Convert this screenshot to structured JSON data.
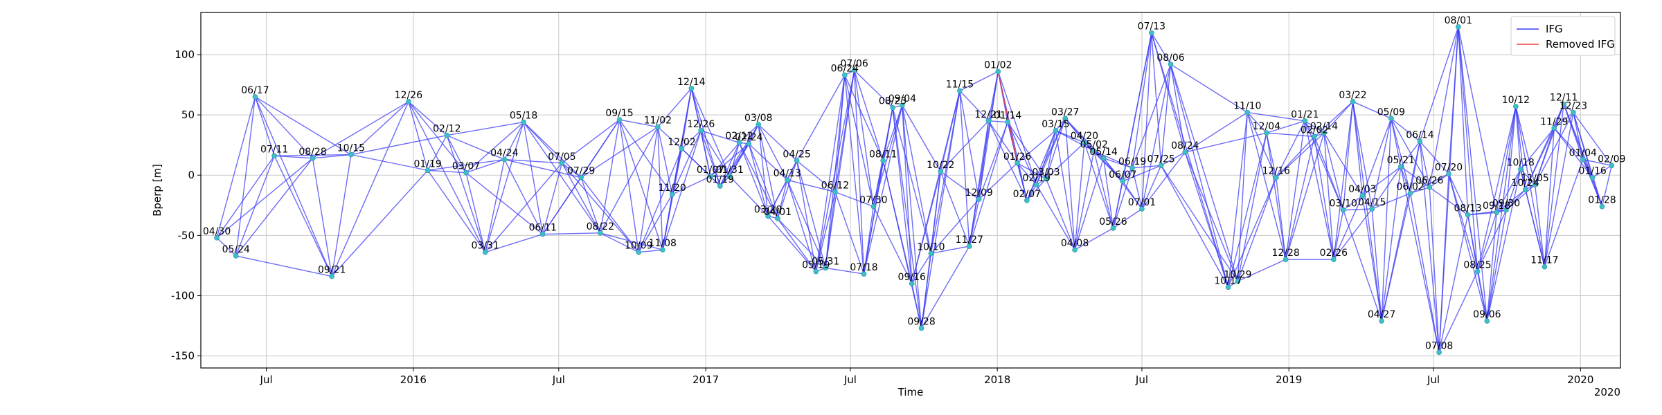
{
  "chart_data": {
    "type": "network",
    "title": "",
    "xlabel": "Time",
    "ylabel": "Bperp [m]",
    "x_range": [
      "2015-04-10",
      "2020-02-20"
    ],
    "ylim": [
      -160,
      135
    ],
    "x_ticks": [
      {
        "date": "2015-07-01",
        "label": "Jul"
      },
      {
        "date": "2016-01-01",
        "label": "2016"
      },
      {
        "date": "2016-07-01",
        "label": "Jul"
      },
      {
        "date": "2017-01-01",
        "label": "2017"
      },
      {
        "date": "2017-07-01",
        "label": "Jul"
      },
      {
        "date": "2018-01-01",
        "label": "2018"
      },
      {
        "date": "2018-07-01",
        "label": "Jul"
      },
      {
        "date": "2019-01-01",
        "label": "2019"
      },
      {
        "date": "2019-07-01",
        "label": "Jul"
      },
      {
        "date": "2020-01-01",
        "label": "2020"
      }
    ],
    "x_offset_label": "2020",
    "y_ticks": [
      -150,
      -100,
      -50,
      0,
      50,
      100
    ],
    "grid": true,
    "legend_position": "top-right",
    "series": [
      {
        "name": "IFG",
        "color": "#3b3bf5"
      },
      {
        "name": "Removed IFG",
        "color": "#f04040"
      }
    ],
    "acquisitions": [
      {
        "label": "04/30",
        "date": "2015-04-30",
        "bperp": -52
      },
      {
        "label": "05/24",
        "date": "2015-05-24",
        "bperp": -67
      },
      {
        "label": "06/17",
        "date": "2015-06-17",
        "bperp": 65
      },
      {
        "label": "07/11",
        "date": "2015-07-11",
        "bperp": 16
      },
      {
        "label": "08/28",
        "date": "2015-08-28",
        "bperp": 14
      },
      {
        "label": "09/21",
        "date": "2015-09-21",
        "bperp": -84
      },
      {
        "label": "10/15",
        "date": "2015-10-15",
        "bperp": 17
      },
      {
        "label": "12/26",
        "date": "2015-12-26",
        "bperp": 61
      },
      {
        "label": "01/19",
        "date": "2016-01-19",
        "bperp": 4
      },
      {
        "label": "02/12",
        "date": "2016-02-12",
        "bperp": 33
      },
      {
        "label": "03/07",
        "date": "2016-03-07",
        "bperp": 2
      },
      {
        "label": "03/31",
        "date": "2016-03-31",
        "bperp": -64
      },
      {
        "label": "04/24",
        "date": "2016-04-24",
        "bperp": 13
      },
      {
        "label": "05/18",
        "date": "2016-05-18",
        "bperp": 44
      },
      {
        "label": "06/11",
        "date": "2016-06-11",
        "bperp": -49
      },
      {
        "label": "07/05",
        "date": "2016-07-05",
        "bperp": 10
      },
      {
        "label": "07/29",
        "date": "2016-07-29",
        "bperp": -2
      },
      {
        "label": "08/22",
        "date": "2016-08-22",
        "bperp": -48
      },
      {
        "label": "09/15",
        "date": "2016-09-15",
        "bperp": 46
      },
      {
        "label": "10/09",
        "date": "2016-10-09",
        "bperp": -64
      },
      {
        "label": "11/02",
        "date": "2016-11-02",
        "bperp": 40
      },
      {
        "label": "11/08",
        "date": "2016-11-08",
        "bperp": -62
      },
      {
        "label": "11/20",
        "date": "2016-11-20",
        "bperp": -16
      },
      {
        "label": "12/02",
        "date": "2016-12-02",
        "bperp": 22
      },
      {
        "label": "12/14",
        "date": "2016-12-14",
        "bperp": 72
      },
      {
        "label": "12/26",
        "date": "2016-12-26",
        "bperp": 37
      },
      {
        "label": "01/07",
        "date": "2017-01-07",
        "bperp": -1
      },
      {
        "label": "01/19",
        "date": "2017-01-19",
        "bperp": -9
      },
      {
        "label": "01/31",
        "date": "2017-01-31",
        "bperp": -1
      },
      {
        "label": "02/12",
        "date": "2017-02-12",
        "bperp": 27
      },
      {
        "label": "02/24",
        "date": "2017-02-24",
        "bperp": 26
      },
      {
        "label": "03/08",
        "date": "2017-03-08",
        "bperp": 42
      },
      {
        "label": "03/20",
        "date": "2017-03-20",
        "bperp": -34
      },
      {
        "label": "04/01",
        "date": "2017-04-01",
        "bperp": -36
      },
      {
        "label": "04/13",
        "date": "2017-04-13",
        "bperp": -4
      },
      {
        "label": "04/25",
        "date": "2017-04-25",
        "bperp": 12
      },
      {
        "label": "05/31",
        "date": "2017-05-31",
        "bperp": -77
      },
      {
        "label": "05/19",
        "date": "2017-05-19",
        "bperp": -80
      },
      {
        "label": "06/12",
        "date": "2017-06-12",
        "bperp": -14
      },
      {
        "label": "06/24",
        "date": "2017-06-24",
        "bperp": 83
      },
      {
        "label": "07/06",
        "date": "2017-07-06",
        "bperp": 87
      },
      {
        "label": "07/18",
        "date": "2017-07-18",
        "bperp": -82
      },
      {
        "label": "07/30",
        "date": "2017-07-30",
        "bperp": -26
      },
      {
        "label": "08/11",
        "date": "2017-08-11",
        "bperp": 12
      },
      {
        "label": "08/23",
        "date": "2017-08-23",
        "bperp": 56
      },
      {
        "label": "09/04",
        "date": "2017-09-04",
        "bperp": 58
      },
      {
        "label": "09/16",
        "date": "2017-09-16",
        "bperp": -90
      },
      {
        "label": "09/28",
        "date": "2017-09-28",
        "bperp": -127
      },
      {
        "label": "10/10",
        "date": "2017-10-10",
        "bperp": -65
      },
      {
        "label": "10/22",
        "date": "2017-10-22",
        "bperp": 3
      },
      {
        "label": "11/15",
        "date": "2017-11-15",
        "bperp": 70
      },
      {
        "label": "11/27",
        "date": "2017-11-27",
        "bperp": -59
      },
      {
        "label": "12/09",
        "date": "2017-12-09",
        "bperp": -20
      },
      {
        "label": "12/21",
        "date": "2017-12-21",
        "bperp": 45
      },
      {
        "label": "01/02",
        "date": "2018-01-02",
        "bperp": 86
      },
      {
        "label": "01/14",
        "date": "2018-01-14",
        "bperp": 44
      },
      {
        "label": "01/26",
        "date": "2018-01-26",
        "bperp": 10
      },
      {
        "label": "02/07",
        "date": "2018-02-07",
        "bperp": -21
      },
      {
        "label": "02/19",
        "date": "2018-02-19",
        "bperp": -8
      },
      {
        "label": "03/03",
        "date": "2018-03-03",
        "bperp": -3
      },
      {
        "label": "03/15",
        "date": "2018-03-15",
        "bperp": 37
      },
      {
        "label": "03/27",
        "date": "2018-03-27",
        "bperp": 47
      },
      {
        "label": "04/08",
        "date": "2018-04-08",
        "bperp": -62
      },
      {
        "label": "04/20",
        "date": "2018-04-20",
        "bperp": 27
      },
      {
        "label": "05/02",
        "date": "2018-05-02",
        "bperp": 20
      },
      {
        "label": "05/14",
        "date": "2018-05-14",
        "bperp": 14
      },
      {
        "label": "05/26",
        "date": "2018-05-26",
        "bperp": -44
      },
      {
        "label": "06/07",
        "date": "2018-06-07",
        "bperp": -5
      },
      {
        "label": "06/19",
        "date": "2018-06-19",
        "bperp": 6
      },
      {
        "label": "07/01",
        "date": "2018-07-01",
        "bperp": -28
      },
      {
        "label": "07/13",
        "date": "2018-07-13",
        "bperp": 118
      },
      {
        "label": "07/25",
        "date": "2018-07-25",
        "bperp": 8
      },
      {
        "label": "08/06",
        "date": "2018-08-06",
        "bperp": 92
      },
      {
        "label": "08/24",
        "date": "2018-08-24",
        "bperp": 19
      },
      {
        "label": "10/17",
        "date": "2018-10-17",
        "bperp": -93
      },
      {
        "label": "10/29",
        "date": "2018-10-29",
        "bperp": -88
      },
      {
        "label": "11/10",
        "date": "2018-11-10",
        "bperp": 52
      },
      {
        "label": "12/04",
        "date": "2018-12-04",
        "bperp": 35
      },
      {
        "label": "12/16",
        "date": "2018-12-16",
        "bperp": -2
      },
      {
        "label": "12/28",
        "date": "2018-12-28",
        "bperp": -70
      },
      {
        "label": "01/21",
        "date": "2019-01-21",
        "bperp": 45
      },
      {
        "label": "02/02",
        "date": "2019-02-02",
        "bperp": 32
      },
      {
        "label": "02/14",
        "date": "2019-02-14",
        "bperp": 35
      },
      {
        "label": "02/26",
        "date": "2019-02-26",
        "bperp": -70
      },
      {
        "label": "03/10",
        "date": "2019-03-10",
        "bperp": -29
      },
      {
        "label": "03/22",
        "date": "2019-03-22",
        "bperp": 61
      },
      {
        "label": "04/03",
        "date": "2019-04-03",
        "bperp": -17
      },
      {
        "label": "04/15",
        "date": "2019-04-15",
        "bperp": -28
      },
      {
        "label": "04/27",
        "date": "2019-04-27",
        "bperp": -121
      },
      {
        "label": "05/09",
        "date": "2019-05-09",
        "bperp": 47
      },
      {
        "label": "05/21",
        "date": "2019-05-21",
        "bperp": 7
      },
      {
        "label": "06/02",
        "date": "2019-06-02",
        "bperp": -15
      },
      {
        "label": "06/14",
        "date": "2019-06-14",
        "bperp": 28
      },
      {
        "label": "06/26",
        "date": "2019-06-26",
        "bperp": -10
      },
      {
        "label": "07/08",
        "date": "2019-07-08",
        "bperp": -147
      },
      {
        "label": "07/20",
        "date": "2019-07-20",
        "bperp": 1
      },
      {
        "label": "08/01",
        "date": "2019-08-01",
        "bperp": 123
      },
      {
        "label": "08/13",
        "date": "2019-08-13",
        "bperp": -33
      },
      {
        "label": "08/25",
        "date": "2019-08-25",
        "bperp": -80
      },
      {
        "label": "09/06",
        "date": "2019-09-06",
        "bperp": -121
      },
      {
        "label": "09/18",
        "date": "2019-09-18",
        "bperp": -31
      },
      {
        "label": "09/30",
        "date": "2019-09-30",
        "bperp": -29
      },
      {
        "label": "10/12",
        "date": "2019-10-12",
        "bperp": 57
      },
      {
        "label": "10/18",
        "date": "2019-10-18",
        "bperp": 5
      },
      {
        "label": "10/24",
        "date": "2019-10-24",
        "bperp": -12
      },
      {
        "label": "11/05",
        "date": "2019-11-05",
        "bperp": -8
      },
      {
        "label": "11/17",
        "date": "2019-11-17",
        "bperp": -76
      },
      {
        "label": "11/29",
        "date": "2019-11-29",
        "bperp": 39
      },
      {
        "label": "12/11",
        "date": "2019-12-11",
        "bperp": 59
      },
      {
        "label": "12/23",
        "date": "2019-12-23",
        "bperp": 52
      },
      {
        "label": "01/04",
        "date": "2020-01-04",
        "bperp": 13
      },
      {
        "label": "01/16",
        "date": "2020-01-16",
        "bperp": -2
      },
      {
        "label": "01/28",
        "date": "2020-01-28",
        "bperp": -26
      },
      {
        "label": "02/09",
        "date": "2020-02-09",
        "bperp": 8
      }
    ]
  },
  "colors": {
    "ifg_line": "#3b3bf5",
    "removed_line": "#f04040",
    "node": "#3cc0c8",
    "grid": "#c8c8c8"
  }
}
